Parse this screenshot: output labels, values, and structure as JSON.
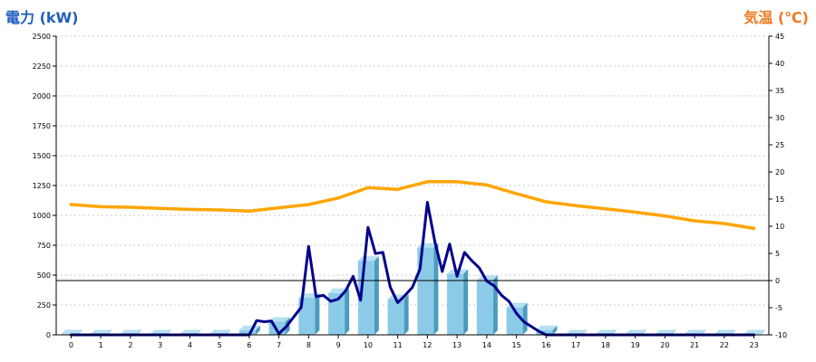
{
  "chart_data": {
    "type": "bar+line",
    "left_axis_title": "電力 (kW)",
    "right_axis_title": "気温 (℃)",
    "y_left": {
      "min": 0,
      "max": 2500,
      "ticks": [
        "0",
        "250",
        "500",
        "750",
        "1000",
        "1250",
        "1500",
        "1750",
        "2000",
        "2250",
        "2500"
      ]
    },
    "y_right": {
      "min": -10,
      "max": 45,
      "ticks": [
        "-10",
        "-5",
        "0",
        "5",
        "10",
        "15",
        "20",
        "25",
        "30",
        "35",
        "40",
        "45"
      ]
    },
    "categories": [
      "0",
      "1",
      "2",
      "3",
      "4",
      "5",
      "6",
      "7",
      "8",
      "9",
      "10",
      "11",
      "12",
      "13",
      "14",
      "15",
      "16",
      "17",
      "18",
      "19",
      "20",
      "21",
      "22",
      "23"
    ],
    "grid": "horizontal-dashed",
    "series": [
      {
        "kind": "bar",
        "axis": "left",
        "color": "#8ccbe8",
        "values": [
          5,
          5,
          5,
          5,
          5,
          5,
          40,
          110,
          310,
          350,
          620,
          300,
          730,
          510,
          460,
          230,
          40,
          5,
          5,
          5,
          5,
          5,
          5,
          5
        ]
      },
      {
        "kind": "line",
        "axis": "left",
        "color": "#00008b",
        "x": [
          0,
          1,
          2,
          3,
          4,
          5,
          6,
          6.25,
          6.5,
          6.75,
          7,
          7.25,
          7.5,
          7.75,
          8,
          8.25,
          8.5,
          8.75,
          9,
          9.25,
          9.5,
          9.75,
          10,
          10.25,
          10.5,
          10.75,
          11,
          11.25,
          11.5,
          11.75,
          12,
          12.25,
          12.5,
          12.75,
          13,
          13.25,
          13.5,
          13.75,
          14,
          14.25,
          14.5,
          14.75,
          15,
          15.25,
          15.5,
          15.75,
          16,
          16.5,
          17,
          18,
          19,
          20,
          21,
          22,
          23
        ],
        "values": [
          0,
          0,
          0,
          0,
          0,
          0,
          0,
          120,
          110,
          115,
          10,
          70,
          150,
          230,
          740,
          320,
          330,
          280,
          300,
          370,
          490,
          290,
          900,
          680,
          690,
          400,
          270,
          330,
          400,
          550,
          1110,
          780,
          530,
          760,
          490,
          690,
          620,
          560,
          450,
          410,
          330,
          280,
          180,
          110,
          70,
          30,
          0,
          0,
          0,
          0,
          0,
          0,
          0,
          0,
          0
        ]
      },
      {
        "kind": "line",
        "axis": "right",
        "color": "#ffa500",
        "values": [
          14.0,
          13.6,
          13.5,
          13.3,
          13.1,
          13.0,
          12.8,
          13.4,
          14.0,
          15.2,
          17.1,
          16.8,
          18.2,
          18.2,
          17.6,
          16.0,
          14.5,
          13.8,
          13.2,
          12.6,
          11.9,
          11.0,
          10.5,
          9.6
        ]
      }
    ],
    "reference_line": {
      "axis": "right",
      "value": 0,
      "color": "#000000"
    }
  }
}
